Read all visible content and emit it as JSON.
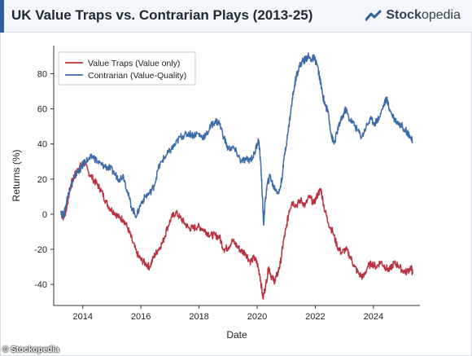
{
  "header": {
    "title": "UK Value Traps vs. Contrarian Plays (2013-25)",
    "brand_bold": "Stock",
    "brand_light": "opedia"
  },
  "watermark": "© Stockopedia",
  "colors": {
    "value_traps": "#b8323f",
    "contrarian": "#3d6aa8",
    "accent": "#2f5f9e"
  },
  "chart_data": {
    "type": "line",
    "xlabel": "Date",
    "ylabel": "Returns (%)",
    "xlim": [
      2013.0,
      2025.6
    ],
    "ylim": [
      -52,
      96
    ],
    "xticks": [
      2014,
      2016,
      2018,
      2020,
      2022,
      2024
    ],
    "yticks": [
      -40,
      -20,
      0,
      20,
      40,
      60,
      80
    ],
    "grid": false,
    "legend_position": "top-left",
    "series": [
      {
        "name": "Value Traps (Value only)",
        "points": [
          [
            2013.25,
            0
          ],
          [
            2013.35,
            -2
          ],
          [
            2013.45,
            4
          ],
          [
            2013.55,
            14
          ],
          [
            2013.65,
            20
          ],
          [
            2013.75,
            23
          ],
          [
            2013.85,
            26
          ],
          [
            2013.95,
            28
          ],
          [
            2014.05,
            29
          ],
          [
            2014.2,
            24
          ],
          [
            2014.35,
            20
          ],
          [
            2014.5,
            17
          ],
          [
            2014.65,
            13
          ],
          [
            2014.8,
            7
          ],
          [
            2014.95,
            3
          ],
          [
            2015.1,
            1
          ],
          [
            2015.25,
            -2
          ],
          [
            2015.4,
            -3
          ],
          [
            2015.55,
            -8
          ],
          [
            2015.7,
            -15
          ],
          [
            2015.85,
            -22
          ],
          [
            2016.0,
            -26
          ],
          [
            2016.15,
            -28
          ],
          [
            2016.3,
            -30
          ],
          [
            2016.45,
            -24
          ],
          [
            2016.6,
            -20
          ],
          [
            2016.75,
            -16
          ],
          [
            2016.9,
            -8
          ],
          [
            2017.05,
            -2
          ],
          [
            2017.2,
            1
          ],
          [
            2017.35,
            -2
          ],
          [
            2017.5,
            -5
          ],
          [
            2017.65,
            -8
          ],
          [
            2017.8,
            -8
          ],
          [
            2017.95,
            -7
          ],
          [
            2018.1,
            -8
          ],
          [
            2018.25,
            -10
          ],
          [
            2018.4,
            -12
          ],
          [
            2018.55,
            -12
          ],
          [
            2018.7,
            -13
          ],
          [
            2018.85,
            -20
          ],
          [
            2019.0,
            -19
          ],
          [
            2019.15,
            -15
          ],
          [
            2019.3,
            -18
          ],
          [
            2019.45,
            -21
          ],
          [
            2019.6,
            -22
          ],
          [
            2019.75,
            -27
          ],
          [
            2019.9,
            -25
          ],
          [
            2020.0,
            -28
          ],
          [
            2020.1,
            -35
          ],
          [
            2020.2,
            -48
          ],
          [
            2020.3,
            -40
          ],
          [
            2020.4,
            -30
          ],
          [
            2020.5,
            -36
          ],
          [
            2020.6,
            -38
          ],
          [
            2020.7,
            -34
          ],
          [
            2020.8,
            -28
          ],
          [
            2020.9,
            -16
          ],
          [
            2021.0,
            -8
          ],
          [
            2021.1,
            2
          ],
          [
            2021.2,
            7
          ],
          [
            2021.35,
            5
          ],
          [
            2021.5,
            8
          ],
          [
            2021.65,
            5
          ],
          [
            2021.8,
            10
          ],
          [
            2021.95,
            6
          ],
          [
            2022.1,
            12
          ],
          [
            2022.2,
            14
          ],
          [
            2022.3,
            4
          ],
          [
            2022.45,
            -5
          ],
          [
            2022.6,
            -10
          ],
          [
            2022.75,
            -18
          ],
          [
            2022.9,
            -22
          ],
          [
            2023.05,
            -20
          ],
          [
            2023.2,
            -24
          ],
          [
            2023.35,
            -30
          ],
          [
            2023.5,
            -34
          ],
          [
            2023.65,
            -36
          ],
          [
            2023.8,
            -30
          ],
          [
            2023.95,
            -28
          ],
          [
            2024.1,
            -30
          ],
          [
            2024.25,
            -27
          ],
          [
            2024.4,
            -30
          ],
          [
            2024.55,
            -32
          ],
          [
            2024.7,
            -28
          ],
          [
            2024.85,
            -29
          ],
          [
            2025.0,
            -32
          ],
          [
            2025.15,
            -33
          ],
          [
            2025.3,
            -30
          ],
          [
            2025.35,
            -34
          ]
        ]
      },
      {
        "name": "Contrarian (Value-Quality)",
        "points": [
          [
            2013.25,
            2
          ],
          [
            2013.35,
            -1
          ],
          [
            2013.45,
            8
          ],
          [
            2013.55,
            14
          ],
          [
            2013.65,
            18
          ],
          [
            2013.75,
            22
          ],
          [
            2013.85,
            25
          ],
          [
            2013.95,
            26
          ],
          [
            2014.05,
            30
          ],
          [
            2014.2,
            31
          ],
          [
            2014.35,
            33
          ],
          [
            2014.5,
            30
          ],
          [
            2014.65,
            28
          ],
          [
            2014.8,
            27
          ],
          [
            2014.95,
            26
          ],
          [
            2015.1,
            23
          ],
          [
            2015.25,
            20
          ],
          [
            2015.4,
            22
          ],
          [
            2015.55,
            12
          ],
          [
            2015.7,
            3
          ],
          [
            2015.85,
            -1
          ],
          [
            2016.0,
            6
          ],
          [
            2016.15,
            10
          ],
          [
            2016.3,
            12
          ],
          [
            2016.45,
            16
          ],
          [
            2016.6,
            26
          ],
          [
            2016.75,
            31
          ],
          [
            2016.9,
            34
          ],
          [
            2017.05,
            37
          ],
          [
            2017.2,
            40
          ],
          [
            2017.35,
            44
          ],
          [
            2017.5,
            45
          ],
          [
            2017.65,
            46
          ],
          [
            2017.8,
            45
          ],
          [
            2017.95,
            46
          ],
          [
            2018.1,
            44
          ],
          [
            2018.25,
            45
          ],
          [
            2018.4,
            50
          ],
          [
            2018.55,
            53
          ],
          [
            2018.7,
            52
          ],
          [
            2018.85,
            44
          ],
          [
            2019.0,
            37
          ],
          [
            2019.15,
            38
          ],
          [
            2019.3,
            35
          ],
          [
            2019.45,
            30
          ],
          [
            2019.6,
            31
          ],
          [
            2019.75,
            31
          ],
          [
            2019.9,
            34
          ],
          [
            2020.0,
            40
          ],
          [
            2020.05,
            42
          ],
          [
            2020.12,
            30
          ],
          [
            2020.18,
            10
          ],
          [
            2020.22,
            -6
          ],
          [
            2020.28,
            8
          ],
          [
            2020.35,
            17
          ],
          [
            2020.45,
            22
          ],
          [
            2020.55,
            16
          ],
          [
            2020.65,
            14
          ],
          [
            2020.75,
            12
          ],
          [
            2020.85,
            20
          ],
          [
            2020.95,
            35
          ],
          [
            2021.05,
            45
          ],
          [
            2021.15,
            58
          ],
          [
            2021.25,
            70
          ],
          [
            2021.35,
            79
          ],
          [
            2021.45,
            84
          ],
          [
            2021.55,
            87
          ],
          [
            2021.65,
            88
          ],
          [
            2021.75,
            90
          ],
          [
            2021.85,
            88
          ],
          [
            2021.95,
            89
          ],
          [
            2022.05,
            86
          ],
          [
            2022.15,
            78
          ],
          [
            2022.25,
            68
          ],
          [
            2022.35,
            62
          ],
          [
            2022.45,
            58
          ],
          [
            2022.55,
            45
          ],
          [
            2022.65,
            40
          ],
          [
            2022.75,
            47
          ],
          [
            2022.85,
            52
          ],
          [
            2022.95,
            56
          ],
          [
            2023.05,
            60
          ],
          [
            2023.15,
            55
          ],
          [
            2023.3,
            52
          ],
          [
            2023.45,
            48
          ],
          [
            2023.6,
            44
          ],
          [
            2023.75,
            50
          ],
          [
            2023.9,
            54
          ],
          [
            2024.05,
            52
          ],
          [
            2024.2,
            55
          ],
          [
            2024.35,
            62
          ],
          [
            2024.45,
            66
          ],
          [
            2024.55,
            60
          ],
          [
            2024.7,
            55
          ],
          [
            2024.85,
            52
          ],
          [
            2025.0,
            50
          ],
          [
            2025.15,
            47
          ],
          [
            2025.25,
            45
          ],
          [
            2025.35,
            41
          ]
        ]
      }
    ]
  }
}
